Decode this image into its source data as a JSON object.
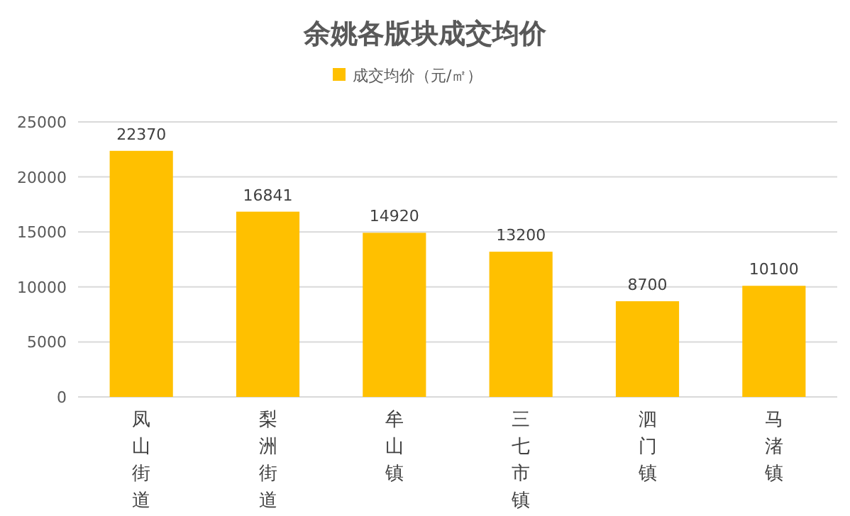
{
  "chart_data": {
    "type": "bar",
    "title": "余姚各版块成交均价",
    "categories": [
      "凤山街道",
      "梨洲街道",
      "牟山镇",
      "三七市镇",
      "泗门镇",
      "马渚镇"
    ],
    "series": [
      {
        "name": "成交均价（元/㎡）",
        "color": "#ffc000",
        "values": [
          22370,
          16841,
          14920,
          13200,
          8700,
          10100
        ]
      }
    ],
    "ylim": [
      0,
      25000
    ],
    "yticks": [
      0,
      5000,
      10000,
      15000,
      20000,
      25000
    ],
    "grid": "y",
    "legend": "top",
    "data_labels": true
  }
}
